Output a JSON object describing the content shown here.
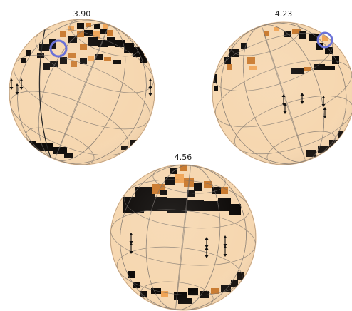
{
  "colors": {
    "background": "#ffffff",
    "surface": "#f6d7b0",
    "surface_edge": "#e7bf93",
    "grid": "#6f6a66",
    "spot_dark": "#0d0a08",
    "spot_mid": "#c9782b",
    "spot_light": "#f0a455",
    "marker_circle": "#6a72d8",
    "arrow": "#111111"
  },
  "icons": {
    "arrow": "double-headed-vertical-arrow-icon",
    "marker": "circle-marker-icon"
  },
  "spheres": [
    {
      "label": "3.90"
    },
    {
      "label": "4.23"
    },
    {
      "label": "4.56"
    }
  ]
}
